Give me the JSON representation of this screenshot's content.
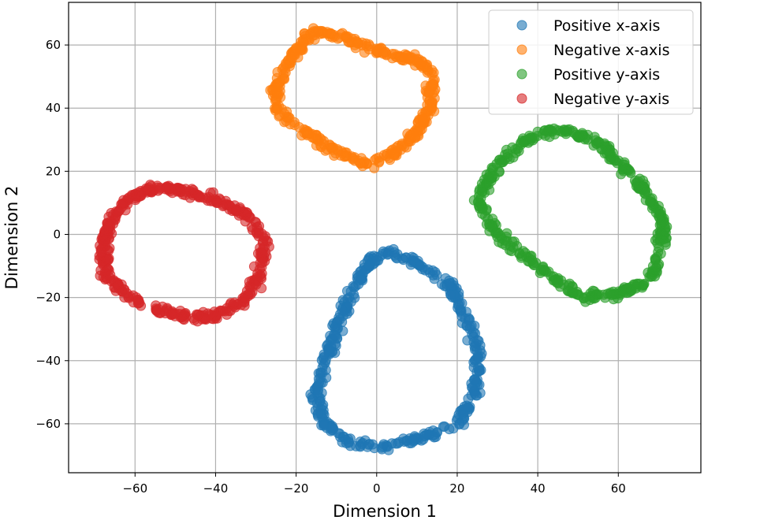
{
  "chart_data": {
    "type": "scatter",
    "title": "",
    "xlabel": "Dimension 1",
    "ylabel": "Dimension 2",
    "xlim": [
      -76.5,
      80.5
    ],
    "ylim": [
      -75.5,
      73.5
    ],
    "grid": true,
    "legend_position": "top-right",
    "xticks": [
      -60,
      -40,
      -20,
      0,
      20,
      40,
      60
    ],
    "yticks": [
      -60,
      -40,
      -20,
      0,
      20,
      40,
      60
    ],
    "xtick_labels": [
      "−60",
      "−40",
      "−20",
      "0",
      "20",
      "40",
      "60"
    ],
    "ytick_labels": [
      "−60",
      "−40",
      "−20",
      "0",
      "20",
      "40",
      "60"
    ],
    "series": [
      {
        "name": "Positive x-axis",
        "color": "#1f77b4",
        "description_of_shape": "ring of points around center (6, -36)",
        "ring": {
          "center": [
            6,
            -36
          ],
          "anchors": [
            [
              3,
              -6
            ],
            [
              10,
              -9
            ],
            [
              18,
              -16
            ],
            [
              23,
              -28
            ],
            [
              25,
              -39
            ],
            [
              24,
              -52
            ],
            [
              20,
              -60
            ],
            [
              13,
              -64
            ],
            [
              3,
              -67
            ],
            [
              -6,
              -66
            ],
            [
              -13,
              -60
            ],
            [
              -15,
              -52
            ],
            [
              -13,
              -42
            ],
            [
              -10,
              -30
            ],
            [
              -6,
              -18
            ],
            [
              -2,
              -9
            ]
          ],
          "count": 420
        }
      },
      {
        "name": "Negative x-axis",
        "color": "#ff7f0e",
        "description_of_shape": "open ring of points around center (-3, 43)",
        "ring": {
          "center": [
            -3,
            43
          ],
          "anchors": [
            [
              -16,
              64
            ],
            [
              -10,
              63
            ],
            [
              -4,
              60
            ],
            [
              3,
              57
            ],
            [
              9,
              56
            ],
            [
              14,
              51
            ],
            [
              13,
              40
            ],
            [
              10,
              32
            ],
            [
              5,
              26
            ],
            [
              -3,
              22
            ],
            [
              -11,
              27
            ],
            [
              -18,
              33
            ],
            [
              -24,
              38
            ],
            [
              -25,
              46
            ],
            [
              -22,
              54
            ],
            [
              -19,
              60
            ]
          ],
          "count": 400
        }
      },
      {
        "name": "Positive y-axis",
        "color": "#2ca02c",
        "description_of_shape": "ring of points around center (51, 7)",
        "ring": {
          "center": [
            51,
            7
          ],
          "anchors": [
            [
              40,
              32
            ],
            [
              47,
              33
            ],
            [
              54,
              30
            ],
            [
              61,
              22
            ],
            [
              67,
              13
            ],
            [
              71,
              4
            ],
            [
              71,
              -5
            ],
            [
              68,
              -14
            ],
            [
              60,
              -19
            ],
            [
              51,
              -20
            ],
            [
              44,
              -14
            ],
            [
              37,
              -7
            ],
            [
              30,
              0
            ],
            [
              25,
              11
            ],
            [
              30,
              22
            ],
            [
              35,
              28
            ]
          ],
          "count": 420
        }
      },
      {
        "name": "Negative y-axis",
        "color": "#d62728",
        "description_of_shape": "ring of points around center (-47, -6)",
        "ring": {
          "center": [
            -47,
            -6
          ],
          "anchors": [
            [
              -52,
              15
            ],
            [
              -45,
              13
            ],
            [
              -37,
              9
            ],
            [
              -31,
              5
            ],
            [
              -28,
              -2
            ],
            [
              -29,
              -13
            ],
            [
              -33,
              -21
            ],
            [
              -40,
              -26
            ],
            [
              -47,
              -26
            ],
            [
              -55,
              -24
            ],
            [
              -62,
              -19
            ],
            [
              -67,
              -13
            ],
            [
              -68,
              -4
            ],
            [
              -66,
              5
            ],
            [
              -62,
              11
            ],
            [
              -57,
              14
            ]
          ],
          "count": 420
        }
      }
    ]
  }
}
